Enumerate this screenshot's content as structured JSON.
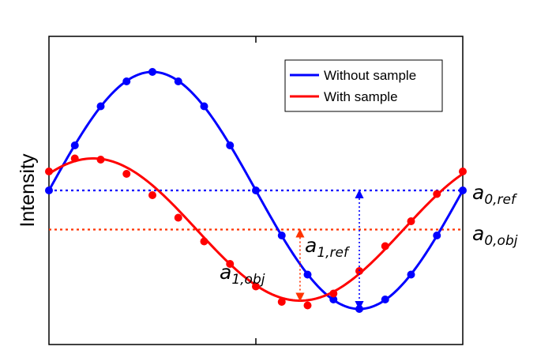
{
  "chart_data": {
    "type": "line",
    "title": "",
    "xlabel": "",
    "ylabel": "Intensity",
    "x_unit": "phase step (one period)",
    "xlim": [
      0,
      1
    ],
    "ylim": [
      -1.3,
      1.3
    ],
    "grid": false,
    "legend_position": "top-right",
    "series": [
      {
        "name": "Without sample",
        "color": "#0000ff",
        "model": {
          "offset": 0.0,
          "amplitude": 1.0,
          "phase": 0.0
        },
        "points_x": [
          0,
          0.0625,
          0.125,
          0.1875,
          0.25,
          0.3125,
          0.375,
          0.4375,
          0.5,
          0.5625,
          0.625,
          0.6875,
          0.75,
          0.8125,
          0.875,
          0.9375,
          1.0
        ],
        "points_y": [
          0,
          0.38,
          0.71,
          0.92,
          1.0,
          0.92,
          0.71,
          0.38,
          0,
          -0.38,
          -0.71,
          -0.92,
          -1.0,
          -0.92,
          -0.71,
          -0.38,
          0
        ]
      },
      {
        "name": "With sample",
        "color": "#ff0000",
        "model": {
          "offset": -0.33,
          "amplitude": 0.6,
          "phase": 0.9
        },
        "points_x": [
          0,
          0.0625,
          0.125,
          0.1875,
          0.25,
          0.3125,
          0.375,
          0.4375,
          0.5,
          0.5625,
          0.625,
          0.6875,
          0.75,
          0.8125,
          0.875,
          0.9375,
          1.0
        ],
        "points_y": [
          0.16,
          0.27,
          0.26,
          0.14,
          -0.04,
          -0.23,
          -0.43,
          -0.62,
          -0.81,
          -0.94,
          -0.97,
          -0.87,
          -0.68,
          -0.47,
          -0.26,
          -0.03,
          0.16
        ]
      }
    ],
    "reference_lines": [
      {
        "name": "a0_ref_line",
        "y": 0.0,
        "color": "#0000ff",
        "style": "dotted"
      },
      {
        "name": "a0_obj_line",
        "y": -0.33,
        "color": "#ff3300",
        "style": "dotted"
      }
    ],
    "annotations": [
      {
        "main": "a",
        "sub": "0,ref"
      },
      {
        "main": "a",
        "sub": "0,obj"
      },
      {
        "main": "a",
        "sub": "1,ref"
      },
      {
        "main": "a",
        "sub": "1,obj"
      }
    ]
  }
}
